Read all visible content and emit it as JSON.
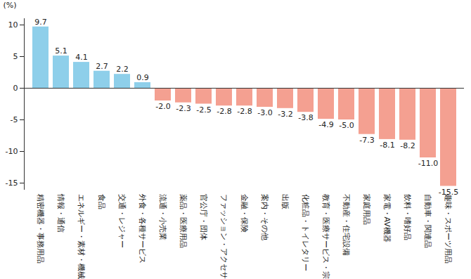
{
  "chart_data": {
    "type": "bar",
    "y_label": "(%)",
    "categories": [
      "精密機器・事務用品",
      "情報・通信",
      "エネルギー・素材・機械",
      "食品",
      "交通・レジャー",
      "外食・各種サービス",
      "流通・小売業",
      "薬品・医療用品",
      "官公庁・団体",
      "ファッション・アクセサリー",
      "金融・保険",
      "案内・その他",
      "出版",
      "化粧品・トイレタリー",
      "教育・医療サービス・宗教",
      "不動産・住宅設備",
      "家庭用品",
      "家電・AV機器",
      "飲料・嗜好品",
      "自動車・関連品",
      "趣味・スポーツ用品"
    ],
    "values": [
      9.7,
      5.1,
      4.1,
      2.7,
      2.2,
      0.9,
      -2.0,
      -2.3,
      -2.5,
      -2.8,
      -2.8,
      -3.0,
      -3.2,
      -3.8,
      -4.9,
      -5.0,
      -7.3,
      -8.1,
      -8.2,
      -11.0,
      -15.5
    ],
    "value_labels": [
      "9.7",
      "5.1",
      "4.1",
      "2.7",
      "2.2",
      "0.9",
      "-2.0",
      "-2.3",
      "-2.5",
      "-2.8",
      "-2.8",
      "-3.0",
      "-3.2",
      "-3.8",
      "-4.9",
      "-5.0",
      "-7.3",
      "-8.1",
      "-8.2",
      "-11.0",
      "-15.5"
    ],
    "colors": [
      "#8ecfea",
      "#8ecfea",
      "#8ecfea",
      "#8ecfea",
      "#8ecfea",
      "#8ecfea",
      "#f4a091",
      "#f4a091",
      "#f4a091",
      "#f4a091",
      "#f4a091",
      "#f4a091",
      "#f4a091",
      "#f4a091",
      "#f4a091",
      "#f4a091",
      "#f4a091",
      "#f4a091",
      "#f4a091",
      "#f4a091",
      "#f4a091"
    ],
    "ylim": [
      -16,
      11
    ],
    "yticks": [
      -15,
      -10,
      -5,
      0,
      5,
      10
    ],
    "data_labels": true,
    "grid": false
  }
}
